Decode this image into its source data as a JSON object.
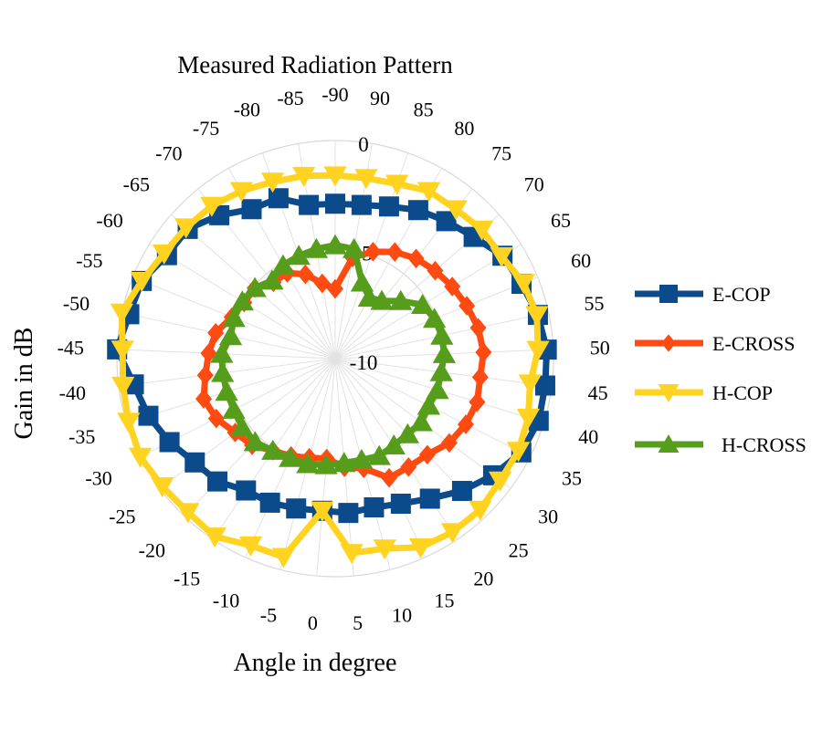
{
  "chart_data": {
    "type": "radar",
    "title": "Measured Radiation Pattern",
    "xlabel": "Angle in degree",
    "ylabel": "Gain in dB",
    "categories": [
      "-90",
      "90",
      "85",
      "80",
      "75",
      "70",
      "65",
      "60",
      "55",
      "50",
      "45",
      "40",
      "35",
      "30",
      "25",
      "20",
      "15",
      "10",
      "5",
      "0",
      "-5",
      "-10",
      "-15",
      "-20",
      "-25",
      "-30",
      "-35",
      "-40",
      "-45",
      "-50",
      "-55",
      "-60",
      "-65",
      "-70",
      "-75",
      "-80",
      "-85"
    ],
    "radial_ticks": [
      0,
      -5,
      -10
    ],
    "rlim": [
      -10,
      0
    ],
    "grid": true,
    "legend_position": "right",
    "series": [
      {
        "name": "E-COP",
        "color": "#0b4a8b",
        "marker": "square",
        "values": [
          -2.9,
          -2.85,
          -2.6,
          -2.2,
          -1.9,
          -1.55,
          -1.0,
          -0.8,
          -0.5,
          -0.3,
          -0.3,
          -0.25,
          -0.45,
          -1.0,
          -1.6,
          -2.25,
          -2.7,
          -2.95,
          -2.9,
          -3.0,
          -2.9,
          -2.75,
          -2.7,
          -2.2,
          -2.0,
          -1.5,
          -1.05,
          -0.7,
          0,
          -0.35,
          -0.45,
          -0.95,
          -1.0,
          -1.55,
          -2.15,
          -2.2,
          -2.85
        ]
      },
      {
        "name": "E-CROSS",
        "color": "#ff4a12",
        "marker": "diamond",
        "values": [
          -6.8,
          -5.3,
          -4.8,
          -4.4,
          -4.1,
          -3.9,
          -3.7,
          -3.5,
          -3.3,
          -3.2,
          -3.3,
          -3.2,
          -3.3,
          -3.5,
          -3.9,
          -4.0,
          -4.0,
          -4.8,
          -5.0,
          -5.4,
          -5.3,
          -5.1,
          -4.9,
          -4.5,
          -4.3,
          -3.9,
          -3.7,
          -4.0,
          -4.2,
          -4.4,
          -4.9,
          -5.1,
          -5.1,
          -5.5,
          -5.5,
          -5.9,
          -6.5
        ]
      },
      {
        "name": "H-COP",
        "color": "#ffd320",
        "marker": "triangle-down",
        "values": [
          -1.6,
          -1.6,
          -1.5,
          -1.2,
          -1.2,
          -1.05,
          -1.05,
          -0.7,
          -0.55,
          -0.7,
          -1.0,
          -0.75,
          -0.6,
          -0.6,
          -0.4,
          -0.4,
          -0.5,
          -1.0,
          -1.05,
          -3.0,
          -0.6,
          -0.6,
          -0.15,
          -0.25,
          -0.15,
          0,
          -0.1,
          -0.2,
          -0.25,
          0,
          -0.45,
          -0.8,
          -0.9,
          -1.0,
          -1.2,
          -1.4,
          -1.5
        ]
      },
      {
        "name": "H-CROSS",
        "color": "#579d1c",
        "marker": "triangle-up",
        "values": [
          -4.8,
          -4.9,
          -6.3,
          -6.8,
          -6.6,
          -6.0,
          -5.3,
          -5.1,
          -5.0,
          -5.0,
          -5.1,
          -5.1,
          -5.2,
          -5.1,
          -5.2,
          -5.2,
          -5.1,
          -5.2,
          -5.2,
          -5.1,
          -5.0,
          -5.0,
          -4.9,
          -4.7,
          -4.7,
          -4.8,
          -4.8,
          -4.8,
          -4.8,
          -5.1,
          -5.0,
          -5.0,
          -5.1,
          -5.4,
          -5.1,
          -5.0,
          -4.9
        ]
      }
    ]
  }
}
